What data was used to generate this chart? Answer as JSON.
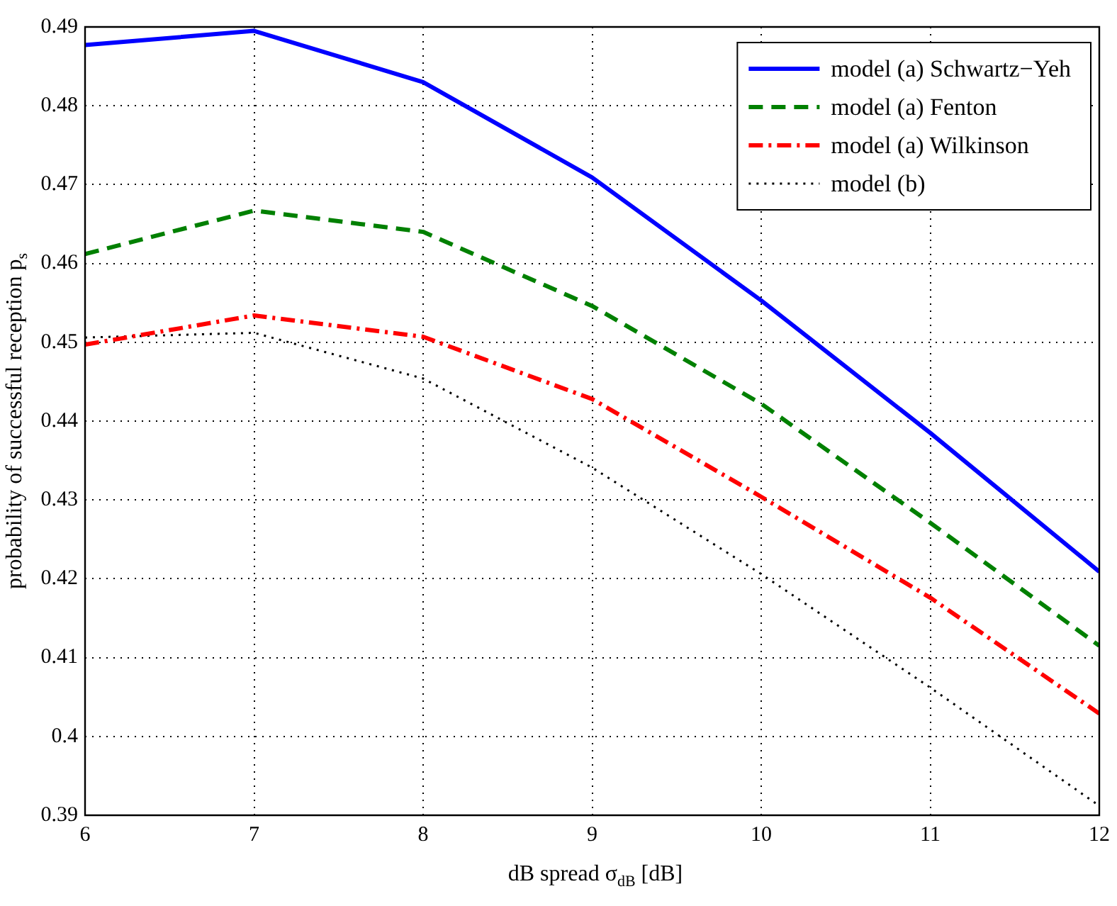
{
  "chart_data": {
    "type": "line",
    "xlabel": "dB spread σ$_{dB}$ [dB]",
    "ylabel": "probability of successful reception p$_{s}$",
    "x": [
      6,
      7,
      8,
      9,
      10,
      11,
      12
    ],
    "series": [
      {
        "name": "model (a) Schwartz−Yeh",
        "color": "#0000ff",
        "line_style": "solid",
        "values": [
          0.4877,
          0.4895,
          0.483,
          0.4709,
          0.4553,
          0.4385,
          0.4209
        ]
      },
      {
        "name": "model (a) Fenton",
        "color": "#008000",
        "line_style": "dashed",
        "values": [
          0.4612,
          0.4667,
          0.464,
          0.4546,
          0.4422,
          0.4271,
          0.4115
        ]
      },
      {
        "name": "model (a) Wilkinson",
        "color": "#ff0000",
        "line_style": "dashdot",
        "values": [
          0.4497,
          0.4534,
          0.4507,
          0.4428,
          0.4304,
          0.4176,
          0.4029
        ]
      },
      {
        "name": "model (b)",
        "color": "#000000",
        "line_style": "dotted",
        "values": [
          0.4506,
          0.4512,
          0.4454,
          0.4341,
          0.4206,
          0.4062,
          0.3912
        ]
      }
    ],
    "xlim": [
      6,
      12
    ],
    "xticks": [
      6,
      7,
      8,
      9,
      10,
      11,
      12
    ],
    "ylim": [
      0.39,
      0.49
    ],
    "yticks": [
      0.39,
      0.4,
      0.41,
      0.42,
      0.43,
      0.44,
      0.45,
      0.46,
      0.47,
      0.48,
      0.49
    ],
    "grid": true,
    "legend": "top right",
    "marker": "none"
  }
}
